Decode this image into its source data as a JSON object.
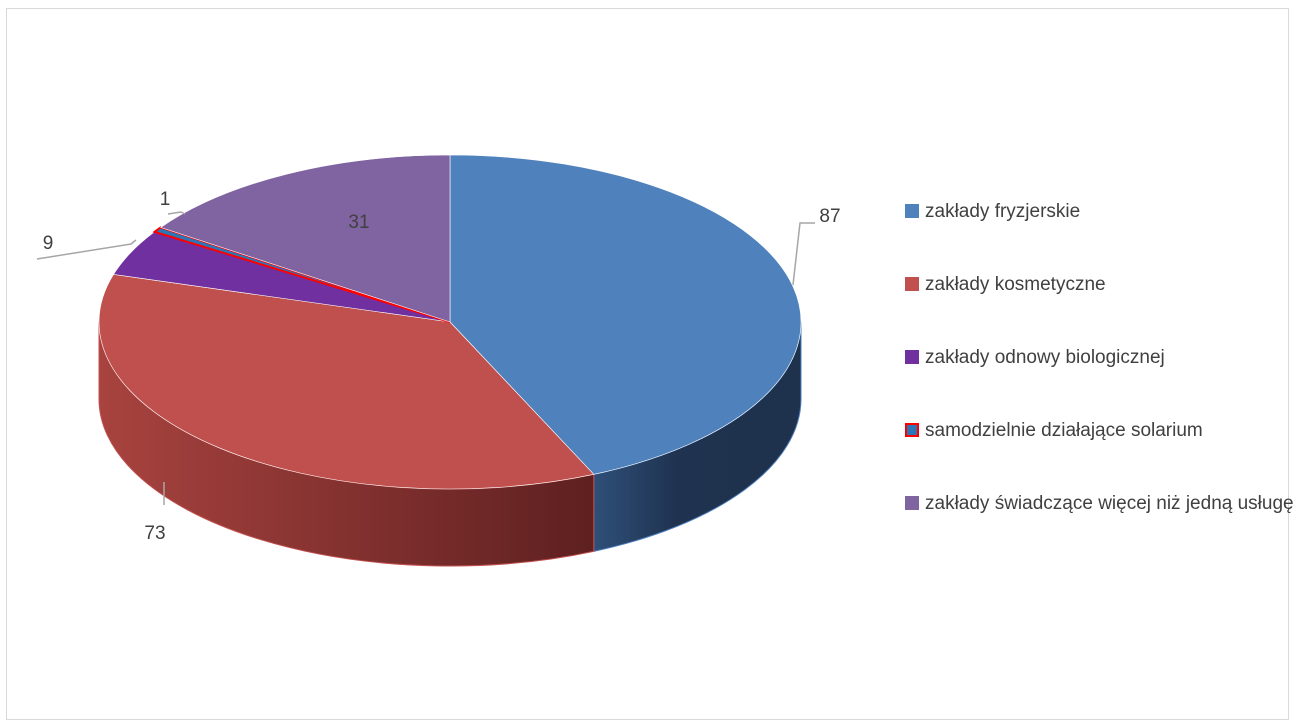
{
  "chart_data": {
    "type": "pie",
    "title": "",
    "style": "3d",
    "legend_position": "right",
    "start_angle_deg": 0,
    "slices": [
      {
        "name": "zakłady fryzjerskie",
        "value": 87,
        "color": "#4f81bd",
        "side_color": "#1f3350"
      },
      {
        "name": "zakłady kosmetyczne",
        "value": 73,
        "color": "#c0504d",
        "side_color": "#7a2c2a"
      },
      {
        "name": "zakłady odnowy biologicznej",
        "value": 9,
        "color": "#7030a0",
        "side_color": "#4a1f6b"
      },
      {
        "name": "samodzielnie działające solarium",
        "value": 1,
        "color": "#2e75b6",
        "side_color": "#1f3350",
        "border_color": "#ff0000"
      },
      {
        "name": "zakłady  świadczące więcej niż jedną usługę",
        "value": 31,
        "color": "#8064a2",
        "side_color": "#4e3c63"
      }
    ]
  }
}
